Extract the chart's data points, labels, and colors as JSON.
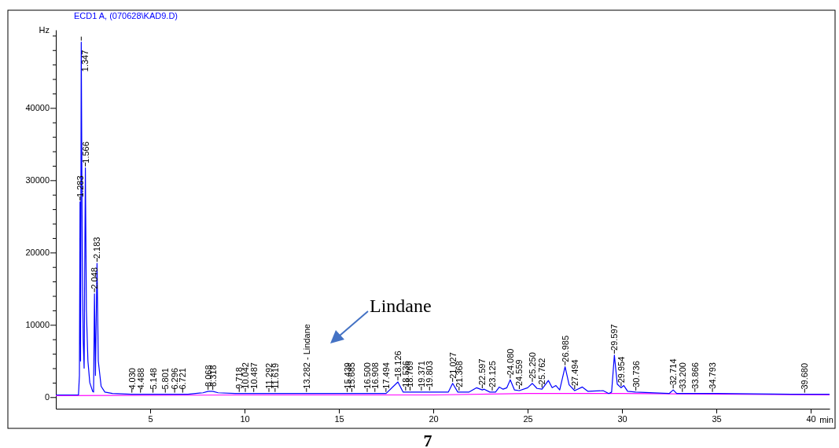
{
  "chart_data": {
    "type": "line",
    "title": "ECD1 A,  (070628\\KAD9.D)",
    "ylabel": "Hz",
    "xlabel": "min",
    "xlim": [
      0,
      41
    ],
    "xticks": [
      5,
      10,
      15,
      20,
      25,
      30,
      35,
      40
    ],
    "ylim": [
      -1600,
      50800
    ],
    "yticks": [
      0,
      {
        "value": 2000,
        "label": null
      },
      {
        "value": 4000,
        "label": null
      },
      {
        "value": 6000,
        "label": null
      },
      {
        "value": 8000,
        "label": null
      },
      10000,
      {
        "value": 12000,
        "label": null
      },
      {
        "value": 14000,
        "label": null
      },
      {
        "value": 16000,
        "label": null
      },
      {
        "value": 18000,
        "label": null
      },
      20000,
      {
        "value": 22000,
        "label": null
      },
      {
        "value": 24000,
        "label": null
      },
      {
        "value": 26000,
        "label": null
      },
      {
        "value": 28000,
        "label": null
      },
      30000,
      {
        "value": 32000,
        "label": null
      },
      {
        "value": 34000,
        "label": null
      },
      {
        "value": 36000,
        "label": null
      },
      {
        "value": 38000,
        "label": null
      },
      40000,
      {
        "value": 42000,
        "label": null
      },
      {
        "value": 44000,
        "label": null
      },
      {
        "value": 46000,
        "label": null
      },
      {
        "value": 48000,
        "label": null
      },
      {
        "value": 50000,
        "label": null
      }
    ],
    "grid": false,
    "marker": "none",
    "line_style": "solid",
    "series": [
      {
        "color": "#0000ff",
        "x": [
          0,
          1.2,
          1.25,
          1.283,
          1.31,
          1.347,
          1.4,
          1.45,
          1.5,
          1.566,
          1.62,
          1.7,
          1.8,
          1.95,
          2.0,
          2.048,
          2.1,
          2.183,
          2.25,
          2.4,
          2.6,
          3.0,
          4,
          5,
          7,
          7.8,
          8.068,
          8.318,
          8.6,
          9.5,
          12,
          15,
          17.5,
          18.126,
          18.4,
          20.8,
          21.027,
          21.3,
          21.9,
          22.3,
          22.597,
          22.7,
          23.0,
          23.3,
          23.5,
          23.7,
          23.9,
          24.08,
          24.3,
          24.559,
          25.0,
          25.25,
          25.5,
          25.762,
          26.1,
          26.3,
          26.5,
          26.7,
          26.985,
          27.2,
          27.494,
          27.9,
          28.2,
          29.0,
          29.3,
          29.45,
          29.597,
          29.75,
          29.954,
          30.1,
          30.3,
          30.736,
          32.5,
          32.714,
          32.9,
          35,
          39,
          41
        ],
        "values": [
          300,
          300,
          3000,
          27000,
          5000,
          49100,
          20000,
          8000,
          4000,
          31700,
          12000,
          5000,
          2000,
          800,
          700,
          14300,
          3000,
          18500,
          5000,
          1500,
          700,
          500,
          400,
          400,
          400,
          600,
          800,
          800,
          600,
          500,
          500,
          500,
          500,
          2100,
          700,
          700,
          1900,
          700,
          700,
          1300,
          1000,
          1100,
          700,
          700,
          1400,
          1100,
          1300,
          2400,
          1000,
          900,
          1300,
          1900,
          1200,
          1100,
          2300,
          1300,
          1600,
          1000,
          4200,
          1700,
          900,
          1400,
          800,
          900,
          500,
          700,
          5800,
          1800,
          1300,
          1600,
          800,
          700,
          500,
          1000,
          500,
          500,
          400,
          400
        ]
      },
      {
        "color": "#ff00ff",
        "x": [
          0,
          10,
          20,
          25,
          30,
          41
        ],
        "values": [
          200,
          300,
          300,
          500,
          500,
          300
        ]
      }
    ],
    "annotations": [
      "Lindane",
      "7",
      {
        "text": "1.283",
        "x": 1.283,
        "y": 27000
      },
      {
        "text": "1.347",
        "x": 1.347,
        "y": 49100
      },
      {
        "text": "1.566",
        "x": 1.566,
        "y": 31700
      },
      {
        "text": "2.048",
        "x": 2.048,
        "y": 14300
      },
      {
        "text": "2.183",
        "x": 2.183,
        "y": 18500
      },
      {
        "text": "4.030",
        "x": 4.03,
        "y": 400
      },
      {
        "text": "4.488",
        "x": 4.488,
        "y": 400
      },
      {
        "text": "5.148",
        "x": 5.148,
        "y": 400
      },
      {
        "text": "5.801",
        "x": 5.801,
        "y": 400
      },
      {
        "text": "6.296",
        "x": 6.296,
        "y": 400
      },
      {
        "text": "6.721",
        "x": 6.721,
        "y": 400
      },
      {
        "text": "8.068",
        "x": 8.068,
        "y": 800
      },
      {
        "text": "8.318",
        "x": 8.318,
        "y": 800
      },
      {
        "text": "9.718",
        "x": 9.718,
        "y": 500
      },
      {
        "text": "10.042",
        "x": 10.042,
        "y": 500
      },
      {
        "text": "10.487",
        "x": 10.487,
        "y": 500
      },
      {
        "text": "11.292",
        "x": 11.292,
        "y": 500
      },
      {
        "text": "11.619",
        "x": 11.619,
        "y": 500
      },
      {
        "text": "13.282 - Lindane",
        "x": 13.282,
        "y": 500
      },
      {
        "text": "15.439",
        "x": 15.439,
        "y": 500
      },
      {
        "text": "15.685",
        "x": 15.685,
        "y": 500
      },
      {
        "text": "16.500",
        "x": 16.5,
        "y": 500
      },
      {
        "text": "16.908",
        "x": 16.908,
        "y": 500
      },
      {
        "text": "17.494",
        "x": 17.494,
        "y": 500
      },
      {
        "text": "18.126",
        "x": 18.126,
        "y": 2100
      },
      {
        "text": "18.536",
        "x": 18.536,
        "y": 700
      },
      {
        "text": "18.769",
        "x": 18.769,
        "y": 700
      },
      {
        "text": "19.371",
        "x": 19.371,
        "y": 700
      },
      {
        "text": "19.803",
        "x": 19.803,
        "y": 700
      },
      {
        "text": "21.027",
        "x": 21.027,
        "y": 1900
      },
      {
        "text": "21.368",
        "x": 21.368,
        "y": 700
      },
      {
        "text": "22.597",
        "x": 22.597,
        "y": 1000
      },
      {
        "text": "23.125",
        "x": 23.125,
        "y": 700
      },
      {
        "text": "24.080",
        "x": 24.08,
        "y": 2400
      },
      {
        "text": "24.559",
        "x": 24.559,
        "y": 900
      },
      {
        "text": "25.250",
        "x": 25.25,
        "y": 1900
      },
      {
        "text": "25.762",
        "x": 25.762,
        "y": 1100
      },
      {
        "text": "26.985",
        "x": 26.985,
        "y": 4200
      },
      {
        "text": "27.494",
        "x": 27.494,
        "y": 900
      },
      {
        "text": "29.597",
        "x": 29.597,
        "y": 5800
      },
      {
        "text": "29.954",
        "x": 29.954,
        "y": 1300
      },
      {
        "text": "30.736",
        "x": 30.736,
        "y": 700
      },
      {
        "text": "32.714",
        "x": 32.714,
        "y": 1000
      },
      {
        "text": "33.200",
        "x": 33.2,
        "y": 500
      },
      {
        "text": "33.866",
        "x": 33.866,
        "y": 500
      },
      {
        "text": "34.793",
        "x": 34.793,
        "y": 500
      },
      {
        "text": "39.680",
        "x": 39.68,
        "y": 400
      }
    ]
  }
}
